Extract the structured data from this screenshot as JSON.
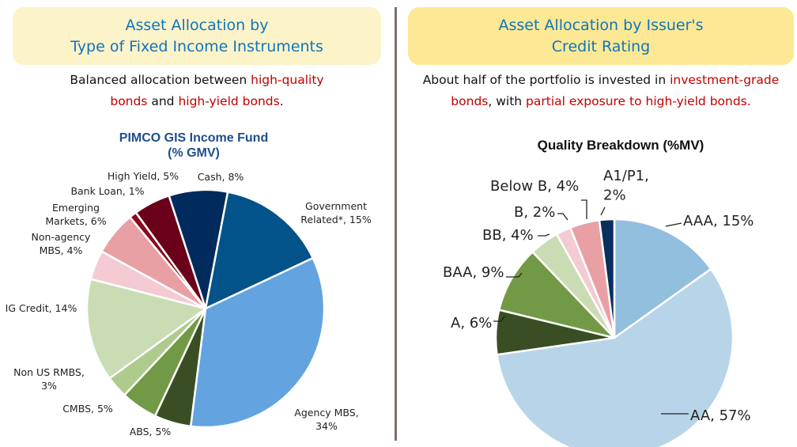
{
  "left_panel": {
    "banner_lines": [
      "Asset Allocation by",
      "Type of Fixed Income Instruments"
    ],
    "subtitle": {
      "line1": [
        {
          "text": "Balanced allocation between ",
          "hl": false
        },
        {
          "text": "high-quality",
          "hl": true
        }
      ],
      "line2": [
        {
          "text": "bonds",
          "hl": true
        },
        {
          "text": " and ",
          "hl": false
        },
        {
          "text": "high-yield bonds",
          "hl": true
        },
        {
          "text": ".",
          "hl": false
        }
      ]
    }
  },
  "right_panel": {
    "banner_lines": [
      "Asset Allocation by Issuer's",
      "Credit Rating"
    ],
    "subtitle": {
      "line1": [
        {
          "text": "About half of the portfolio is invested in ",
          "hl": false
        },
        {
          "text": "investment-grade",
          "hl": true
        }
      ],
      "line2": [
        {
          "text": "bonds",
          "hl": true
        },
        {
          "text": ", with ",
          "hl": false
        },
        {
          "text": "partial exposure to high-yield bonds.",
          "hl": true
        }
      ]
    }
  },
  "colors": {
    "banner_text": "#0f75bc",
    "highlight": "#c00000"
  },
  "chart_data": [
    {
      "type": "pie",
      "title": "PIMCO GIS Income Fund",
      "subtitle": "(% GMV)",
      "categories": [
        "Cash",
        "Government Related*",
        "Agency MBS",
        "ABS",
        "CMBS",
        "Non US RMBS",
        "IG Credit",
        "Non-agency MBS",
        "Emerging Markets",
        "Bank Loan",
        "High Yield"
      ],
      "values": [
        8,
        15,
        34,
        5,
        5,
        3,
        14,
        4,
        6,
        1,
        5
      ],
      "labels": [
        "Cash, 8%",
        "Government|Related*, 15%",
        "Agency MBS,|34%",
        "ABS, 5%",
        "CMBS, 5%",
        "Non US RMBS,|3%",
        "IG Credit, 14%",
        "Non-agency|MBS, 4%",
        "Emerging|Markets, 6%",
        "Bank Loan, 1%",
        "High Yield, 5%"
      ],
      "colors": [
        "#002b5c",
        "#02538a",
        "#62a3e0",
        "#3a4e24",
        "#729a46",
        "#aecb8e",
        "#cadcb4",
        "#f4cbd2",
        "#e8a0a5",
        "#8b0a1e",
        "#6a0019"
      ],
      "unit": "%"
    },
    {
      "type": "pie",
      "title": "Quality Breakdown (%MV)",
      "categories": [
        "AAA",
        "AA",
        "A",
        "BAA",
        "BB",
        "B",
        "Below B",
        "A1/P1"
      ],
      "values": [
        15,
        57,
        6,
        9,
        4,
        2,
        4,
        2
      ],
      "labels": [
        "AAA, 15%",
        "AA, 57%",
        "A, 6%",
        "BAA, 9%",
        "BB, 4%",
        "B, 2%",
        "Below B, 4%",
        "A1/P1,|2%"
      ],
      "colors": [
        "#93bfdf",
        "#b7d4e9",
        "#3a4e24",
        "#729a46",
        "#cadcb4",
        "#f4cbd2",
        "#e8a0a5",
        "#0a2f5e"
      ],
      "unit": "%"
    }
  ]
}
